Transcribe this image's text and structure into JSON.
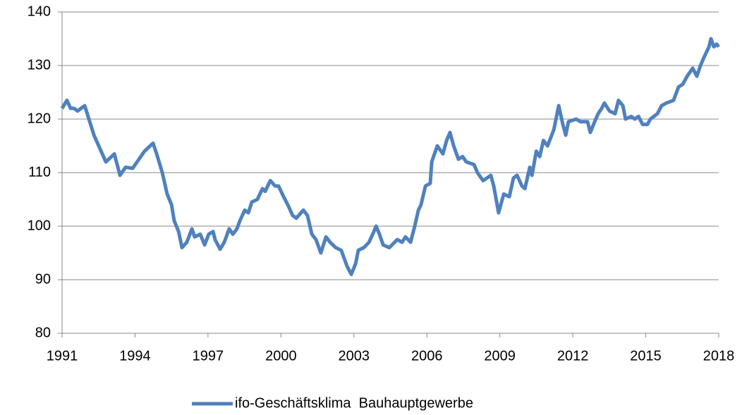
{
  "chart_data": {
    "type": "line",
    "x": [
      1991.0,
      1991.2,
      1991.35,
      1991.49,
      1991.64,
      1991.78,
      1991.93,
      1992.31,
      1992.8,
      1993.15,
      1993.38,
      1993.61,
      1993.9,
      1994.16,
      1994.39,
      1994.74,
      1994.89,
      1995.12,
      1995.32,
      1995.5,
      1995.61,
      1995.79,
      1995.93,
      1996.13,
      1996.34,
      1996.45,
      1996.68,
      1996.86,
      1997.03,
      1997.21,
      1997.29,
      1997.5,
      1997.67,
      1997.87,
      1998.02,
      1998.19,
      1998.31,
      1998.51,
      1998.66,
      1998.8,
      1999.03,
      1999.24,
      1999.35,
      1999.56,
      1999.76,
      1999.9,
      2000.11,
      2000.28,
      2000.48,
      2000.63,
      2000.92,
      2001.09,
      2001.27,
      2001.44,
      2001.64,
      2001.85,
      2002.02,
      2002.25,
      2002.48,
      2002.72,
      2002.89,
      2003.07,
      2003.18,
      2003.41,
      2003.62,
      2003.82,
      2003.91,
      2004.05,
      2004.2,
      2004.46,
      2004.78,
      2004.98,
      2005.12,
      2005.33,
      2005.5,
      2005.65,
      2005.76,
      2005.94,
      2006.14,
      2006.2,
      2006.43,
      2006.66,
      2006.81,
      2006.95,
      2007.1,
      2007.3,
      2007.47,
      2007.62,
      2007.94,
      2008.08,
      2008.31,
      2008.63,
      2008.75,
      2008.95,
      2009.16,
      2009.39,
      2009.56,
      2009.71,
      2009.91,
      2010.03,
      2010.23,
      2010.32,
      2010.5,
      2010.64,
      2010.79,
      2010.96,
      2011.22,
      2011.42,
      2011.59,
      2011.71,
      2011.82,
      2012.14,
      2012.32,
      2012.61,
      2012.72,
      2012.9,
      2013.04,
      2013.19,
      2013.3,
      2013.51,
      2013.74,
      2013.88,
      2014.06,
      2014.17,
      2014.4,
      2014.55,
      2014.7,
      2014.87,
      2015.07,
      2015.19,
      2015.48,
      2015.65,
      2015.85,
      2016.14,
      2016.35,
      2016.52,
      2016.7,
      2016.93,
      2017.1,
      2017.25,
      2017.39,
      2017.6,
      2017.68,
      2017.8,
      2017.91,
      2018.0
    ],
    "series": [
      {
        "name": "ifo-Geschäftsklima  Bauhauptgewerbe",
        "color": "#4f81bd",
        "values": [
          122,
          123.5,
          122,
          122,
          121.5,
          122,
          122.5,
          117,
          112,
          113.5,
          109.5,
          111,
          110.8,
          112.5,
          114,
          115.5,
          113.5,
          110,
          106,
          104,
          101,
          99,
          96,
          97,
          99.5,
          98,
          98.5,
          96.5,
          98.5,
          99,
          97.5,
          95.7,
          97,
          99.5,
          98.5,
          99.5,
          101,
          103,
          102.5,
          104.5,
          105,
          107,
          106.5,
          108.5,
          107.5,
          107.5,
          105.5,
          104,
          102,
          101.5,
          103,
          102,
          98.5,
          97.5,
          95,
          98,
          97,
          96,
          95.5,
          92.5,
          91,
          93,
          95.5,
          96,
          97,
          99,
          100,
          98.5,
          96.5,
          96,
          97.5,
          97,
          98,
          97,
          100,
          103,
          104,
          107.5,
          108,
          112,
          115,
          113.5,
          116,
          117.5,
          115,
          112.5,
          113,
          112,
          111.5,
          110,
          108.5,
          109.5,
          107.5,
          102.5,
          106,
          105.5,
          109,
          109.5,
          107.5,
          107,
          111,
          109.5,
          114,
          113,
          116,
          115,
          118,
          122.5,
          119,
          117,
          119.5,
          120,
          119.5,
          119.5,
          117.5,
          119.5,
          121,
          122,
          123,
          121.5,
          121,
          123.5,
          122.5,
          120,
          120.5,
          120,
          120.5,
          119,
          119,
          120,
          121,
          122.5,
          123,
          123.5,
          126,
          126.5,
          128,
          129.5,
          128,
          130,
          131.5,
          133.5,
          135,
          133.5,
          134,
          133.5
        ]
      }
    ],
    "xlim": [
      1991,
      2018
    ],
    "xticks": [
      1991,
      1994,
      1997,
      2000,
      2003,
      2006,
      2009,
      2012,
      2015,
      2018
    ],
    "ylim": [
      80,
      140
    ],
    "yticks": [
      80,
      90,
      100,
      110,
      120,
      130,
      140
    ],
    "grid": true,
    "legend": "bottom"
  }
}
